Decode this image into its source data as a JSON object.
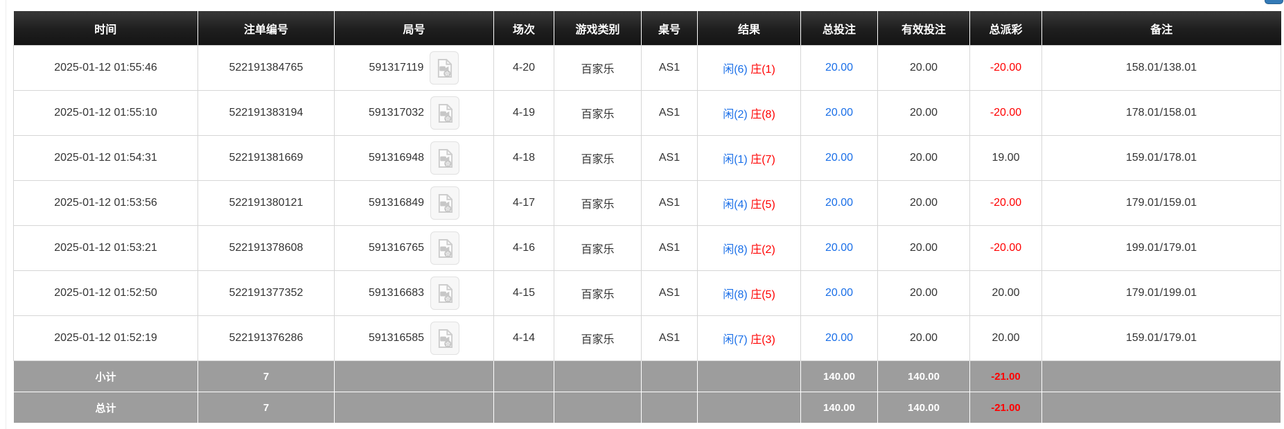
{
  "page": {
    "floating_button": {
      "label": "",
      "color": "#337ab7",
      "note": "blue button cut off at top-right of viewport"
    }
  },
  "table": {
    "headers": [
      {
        "key": "time",
        "label": "时间"
      },
      {
        "key": "bet_id",
        "label": "注单编号"
      },
      {
        "key": "round_id",
        "label": "局号"
      },
      {
        "key": "session",
        "label": "场次"
      },
      {
        "key": "game_type",
        "label": "游戏类别"
      },
      {
        "key": "table_no",
        "label": "桌号"
      },
      {
        "key": "result",
        "label": "结果"
      },
      {
        "key": "total_bet",
        "label": "总投注"
      },
      {
        "key": "valid_bet",
        "label": "有效投注"
      },
      {
        "key": "total_payout",
        "label": "总派彩"
      },
      {
        "key": "remark",
        "label": "备注"
      }
    ],
    "icons": {
      "round_video": "video-replay-icon"
    },
    "rows": [
      {
        "time": "2025-01-12 01:55:46",
        "bet_id": "522191384765",
        "round_id": "591317119",
        "session": "4-20",
        "game_type": "百家乐",
        "table_no": "AS1",
        "result_player": "闲(6)",
        "result_banker": "庄(1)",
        "total_bet": "20.00",
        "valid_bet": "20.00",
        "total_payout": "-20.00",
        "remark": "158.01/138.01"
      },
      {
        "time": "2025-01-12 01:55:10",
        "bet_id": "522191383194",
        "round_id": "591317032",
        "session": "4-19",
        "game_type": "百家乐",
        "table_no": "AS1",
        "result_player": "闲(2)",
        "result_banker": "庄(8)",
        "total_bet": "20.00",
        "valid_bet": "20.00",
        "total_payout": "-20.00",
        "remark": "178.01/158.01"
      },
      {
        "time": "2025-01-12 01:54:31",
        "bet_id": "522191381669",
        "round_id": "591316948",
        "session": "4-18",
        "game_type": "百家乐",
        "table_no": "AS1",
        "result_player": "闲(1)",
        "result_banker": "庄(7)",
        "total_bet": "20.00",
        "valid_bet": "20.00",
        "total_payout": "19.00",
        "remark": "159.01/178.01"
      },
      {
        "time": "2025-01-12 01:53:56",
        "bet_id": "522191380121",
        "round_id": "591316849",
        "session": "4-17",
        "game_type": "百家乐",
        "table_no": "AS1",
        "result_player": "闲(4)",
        "result_banker": "庄(5)",
        "total_bet": "20.00",
        "valid_bet": "20.00",
        "total_payout": "-20.00",
        "remark": "179.01/159.01"
      },
      {
        "time": "2025-01-12 01:53:21",
        "bet_id": "522191378608",
        "round_id": "591316765",
        "session": "4-16",
        "game_type": "百家乐",
        "table_no": "AS1",
        "result_player": "闲(8)",
        "result_banker": "庄(2)",
        "total_bet": "20.00",
        "valid_bet": "20.00",
        "total_payout": "-20.00",
        "remark": "199.01/179.01"
      },
      {
        "time": "2025-01-12 01:52:50",
        "bet_id": "522191377352",
        "round_id": "591316683",
        "session": "4-15",
        "game_type": "百家乐",
        "table_no": "AS1",
        "result_player": "闲(8)",
        "result_banker": "庄(5)",
        "total_bet": "20.00",
        "valid_bet": "20.00",
        "total_payout": "20.00",
        "remark": "179.01/199.01"
      },
      {
        "time": "2025-01-12 01:52:19",
        "bet_id": "522191376286",
        "round_id": "591316585",
        "session": "4-14",
        "game_type": "百家乐",
        "table_no": "AS1",
        "result_player": "闲(7)",
        "result_banker": "庄(3)",
        "total_bet": "20.00",
        "valid_bet": "20.00",
        "total_payout": "20.00",
        "remark": "159.01/179.01"
      }
    ],
    "summary_rows": [
      {
        "label": "小计",
        "count": "7",
        "total_bet": "140.00",
        "valid_bet": "140.00",
        "total_payout": "-21.00"
      },
      {
        "label": "总计",
        "count": "7",
        "total_bet": "140.00",
        "valid_bet": "140.00",
        "total_payout": "-21.00"
      }
    ]
  },
  "colors": {
    "header_bg": "#1e1e1e",
    "header_text": "#ffffff",
    "player_blue": "#1a6fe8",
    "banker_red": "#ff0000",
    "total_bet_blue": "#1a6fe8",
    "payout_negative_red": "#ff0000",
    "body_text": "#333333",
    "row_border": "#d6d6d6",
    "summary_bg": "#9d9d9d",
    "summary_text": "#ffffff",
    "floating_button_blue": "#337ab7"
  }
}
